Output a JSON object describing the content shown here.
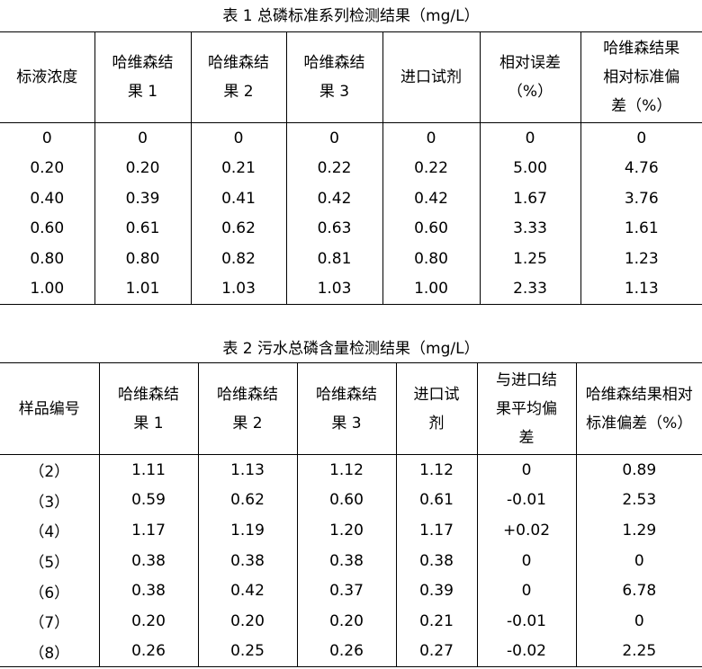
{
  "table1": {
    "caption": "表 1 总磷标准系列检测结果（mg/L）",
    "header": [
      "标液浓度",
      "哈维森结果 1",
      "哈维森结果 2",
      "哈维森结果 3",
      "进口试剂",
      "相对误差（%）",
      "哈维森结果相对标准偏差（%）"
    ],
    "rows": [
      [
        "0",
        "0",
        "0",
        "0",
        "0",
        "0",
        "0"
      ],
      [
        "0.20",
        "0.20",
        "0.21",
        "0.22",
        "0.22",
        "5.00",
        "4.76"
      ],
      [
        "0.40",
        "0.39",
        "0.41",
        "0.42",
        "0.42",
        "1.67",
        "3.76"
      ],
      [
        "0.60",
        "0.61",
        "0.62",
        "0.63",
        "0.60",
        "3.33",
        "1.61"
      ],
      [
        "0.80",
        "0.80",
        "0.82",
        "0.81",
        "0.80",
        "1.25",
        "1.23"
      ],
      [
        "1.00",
        "1.01",
        "1.03",
        "1.03",
        "1.00",
        "2.33",
        "1.13"
      ]
    ]
  },
  "table2": {
    "caption": "表 2 污水总磷含量检测结果（mg/L）",
    "header": [
      "样品编号",
      "哈维森结果 1",
      "哈维森结果 2",
      "哈维森结果 3",
      "进口试剂",
      "与进口结果平均偏差",
      "哈维森结果相对标准偏差（%）"
    ],
    "rows": [
      [
        "（2）",
        "1.11",
        "1.13",
        "1.12",
        "1.12",
        "0",
        "0.89"
      ],
      [
        "（3）",
        "0.59",
        "0.62",
        "0.60",
        "0.61",
        "-0.01",
        "2.53"
      ],
      [
        "（4）",
        "1.17",
        "1.19",
        "1.20",
        "1.17",
        "+0.02",
        "1.29"
      ],
      [
        "（5）",
        "0.38",
        "0.38",
        "0.38",
        "0.38",
        "0",
        "0"
      ],
      [
        "（6）",
        "0.38",
        "0.42",
        "0.37",
        "0.39",
        "0",
        "6.78"
      ],
      [
        "（7）",
        "0.20",
        "0.20",
        "0.20",
        "0.21",
        "-0.01",
        "0"
      ],
      [
        "（8）",
        "0.26",
        "0.25",
        "0.26",
        "0.27",
        "-0.02",
        "2.25"
      ]
    ]
  }
}
